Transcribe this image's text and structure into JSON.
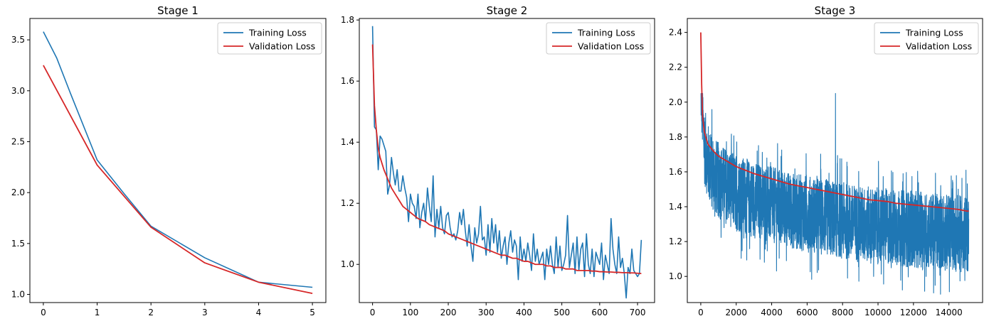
{
  "chart_data": [
    {
      "type": "line",
      "title": "Stage 1",
      "xlabel": "",
      "ylabel": "",
      "xlim": [
        -0.25,
        5.25
      ],
      "ylim": [
        0.92,
        3.71
      ],
      "x_ticks": [
        "0",
        "1",
        "2",
        "3",
        "4",
        "5"
      ],
      "y_ticks": [
        "1.0",
        "1.5",
        "2.0",
        "2.5",
        "3.0",
        "3.5"
      ],
      "legend": {
        "placement": "top-right",
        "entries": [
          "Training Loss",
          "Validation Loss"
        ]
      },
      "series": [
        {
          "name": "Training Loss",
          "color": "#1f77b4",
          "x": [
            0,
            0.25,
            0.5,
            0.75,
            1,
            1.5,
            2,
            3,
            4,
            5
          ],
          "y": [
            3.58,
            3.32,
            2.98,
            2.65,
            2.32,
            1.99,
            1.67,
            1.36,
            1.12,
            1.07
          ]
        },
        {
          "name": "Validation Loss",
          "color": "#d62728",
          "x": [
            0,
            1,
            2,
            3,
            4,
            5
          ],
          "y": [
            3.25,
            2.27,
            1.66,
            1.31,
            1.12,
            1.01
          ]
        }
      ]
    },
    {
      "type": "line",
      "title": "Stage 2",
      "xlabel": "",
      "ylabel": "",
      "xlim": [
        -35,
        745
      ],
      "ylim": [
        0.875,
        1.805
      ],
      "x_ticks": [
        "0",
        "100",
        "200",
        "300",
        "400",
        "500",
        "600",
        "700"
      ],
      "y_ticks": [
        "1.0",
        "1.2",
        "1.4",
        "1.6",
        "1.8"
      ],
      "legend": {
        "placement": "top-right",
        "entries": [
          "Training Loss",
          "Validation Loss"
        ]
      },
      "series": [
        {
          "name": "Training Loss",
          "color": "#1f77b4",
          "x": [
            0,
            5,
            10,
            15,
            20,
            25,
            30,
            35,
            40,
            45,
            50,
            55,
            60,
            65,
            70,
            75,
            80,
            85,
            90,
            95,
            100,
            105,
            110,
            115,
            120,
            125,
            130,
            135,
            140,
            145,
            150,
            155,
            160,
            165,
            170,
            175,
            180,
            185,
            190,
            195,
            200,
            205,
            210,
            215,
            220,
            225,
            230,
            235,
            240,
            245,
            250,
            255,
            260,
            265,
            270,
            275,
            280,
            285,
            290,
            295,
            300,
            305,
            310,
            315,
            320,
            325,
            330,
            335,
            340,
            345,
            350,
            355,
            360,
            365,
            370,
            375,
            380,
            385,
            390,
            395,
            400,
            405,
            410,
            415,
            420,
            425,
            430,
            435,
            440,
            445,
            450,
            455,
            460,
            465,
            470,
            475,
            480,
            485,
            490,
            495,
            500,
            505,
            510,
            515,
            520,
            525,
            530,
            535,
            540,
            545,
            550,
            555,
            560,
            565,
            570,
            575,
            580,
            585,
            590,
            595,
            600,
            605,
            610,
            615,
            620,
            625,
            630,
            635,
            640,
            645,
            650,
            655,
            660,
            665,
            670,
            675,
            680,
            685,
            690,
            695,
            700,
            705,
            710
          ],
          "y": [
            1.78,
            1.45,
            1.44,
            1.31,
            1.42,
            1.41,
            1.39,
            1.37,
            1.23,
            1.26,
            1.35,
            1.3,
            1.26,
            1.31,
            1.24,
            1.24,
            1.29,
            1.25,
            1.22,
            1.14,
            1.23,
            1.2,
            1.19,
            1.15,
            1.23,
            1.12,
            1.17,
            1.2,
            1.14,
            1.25,
            1.19,
            1.14,
            1.29,
            1.09,
            1.18,
            1.12,
            1.19,
            1.12,
            1.1,
            1.16,
            1.17,
            1.12,
            1.09,
            1.1,
            1.08,
            1.11,
            1.17,
            1.13,
            1.18,
            1.11,
            1.06,
            1.13,
            1.06,
            1.01,
            1.12,
            1.07,
            1.1,
            1.19,
            1.08,
            1.09,
            1.03,
            1.13,
            1.04,
            1.15,
            1.07,
            1.13,
            1.04,
            1.11,
            1.02,
            1.06,
            1.09,
            1.0,
            1.07,
            1.11,
            1.04,
            1.08,
            1.06,
            0.95,
            1.09,
            1.01,
            1.05,
            1.01,
            1.07,
            1.03,
            0.98,
            1.1,
            1.01,
            1.05,
            1.0,
            1.02,
            1.04,
            0.95,
            1.05,
            1.0,
            1.06,
            1.0,
            0.97,
            1.09,
            0.99,
            1.06,
            0.98,
            1.0,
            1.03,
            1.16,
            0.99,
            1.03,
            1.07,
            0.97,
            1.09,
            0.98,
            1.05,
            1.07,
            0.96,
            1.1,
            1.0,
            0.97,
            1.05,
            0.96,
            1.04,
            1.02,
            1.0,
            1.07,
            0.95,
            1.03,
            1.0,
            0.97,
            1.15,
            1.05,
            1.0,
            0.97,
            1.09,
            0.99,
            1.02,
            0.97,
            0.89,
            0.99,
            0.97,
            1.05,
            0.98,
            0.97,
            0.96,
            0.97,
            1.08
          ]
        },
        {
          "name": "Validation Loss",
          "color": "#d62728",
          "x": [
            0,
            5,
            10,
            15,
            20,
            25,
            30,
            40,
            50,
            60,
            70,
            80,
            90,
            100,
            110,
            120,
            130,
            140,
            150,
            160,
            170,
            180,
            190,
            200,
            210,
            220,
            230,
            240,
            250,
            260,
            270,
            280,
            290,
            300,
            310,
            320,
            330,
            340,
            350,
            360,
            370,
            380,
            390,
            400,
            410,
            420,
            430,
            440,
            450,
            460,
            470,
            480,
            490,
            500,
            510,
            520,
            530,
            540,
            550,
            560,
            570,
            580,
            590,
            600,
            610,
            620,
            630,
            640,
            650,
            660,
            670,
            680,
            690,
            700,
            710
          ],
          "y": [
            1.72,
            1.52,
            1.44,
            1.38,
            1.35,
            1.33,
            1.31,
            1.28,
            1.25,
            1.23,
            1.21,
            1.19,
            1.18,
            1.17,
            1.16,
            1.15,
            1.145,
            1.14,
            1.13,
            1.125,
            1.12,
            1.115,
            1.11,
            1.1,
            1.095,
            1.09,
            1.085,
            1.08,
            1.075,
            1.07,
            1.065,
            1.06,
            1.055,
            1.05,
            1.045,
            1.04,
            1.035,
            1.03,
            1.03,
            1.025,
            1.02,
            1.02,
            1.015,
            1.01,
            1.01,
            1.005,
            1.0,
            1.0,
            1.0,
            0.995,
            0.995,
            0.99,
            0.99,
            0.99,
            0.985,
            0.985,
            0.985,
            0.98,
            0.98,
            0.98,
            0.98,
            0.978,
            0.978,
            0.976,
            0.976,
            0.975,
            0.975,
            0.974,
            0.974,
            0.973,
            0.973,
            0.972,
            0.972,
            0.971,
            0.97
          ]
        }
      ]
    },
    {
      "type": "line",
      "title": "Stage 3",
      "xlabel": "",
      "ylabel": "",
      "xlim": [
        -760,
        15900
      ],
      "ylim": [
        0.85,
        2.48
      ],
      "x_ticks": [
        "0",
        "2000",
        "4000",
        "6000",
        "8000",
        "10000",
        "12000",
        "14000"
      ],
      "y_ticks": [
        "1.0",
        "1.2",
        "1.4",
        "1.6",
        "1.8",
        "2.0",
        "2.2",
        "2.4"
      ],
      "legend": {
        "placement": "top-right",
        "entries": [
          "Training Loss",
          "Validation Loss"
        ]
      },
      "series": [
        {
          "name": "Training Loss",
          "color": "#1f77b4",
          "x_start": 0,
          "x_end": 15120,
          "points": 15120,
          "trend": [
            [
              0,
              2.1
            ],
            [
              200,
              1.75
            ],
            [
              500,
              1.62
            ],
            [
              1000,
              1.55
            ],
            [
              2000,
              1.48
            ],
            [
              3000,
              1.44
            ],
            [
              4000,
              1.41
            ],
            [
              5000,
              1.38
            ],
            [
              6000,
              1.36
            ],
            [
              7000,
              1.34
            ],
            [
              8000,
              1.32
            ],
            [
              9000,
              1.3
            ],
            [
              10000,
              1.29
            ],
            [
              11000,
              1.28
            ],
            [
              12000,
              1.27
            ],
            [
              13000,
              1.26
            ],
            [
              14000,
              1.25
            ],
            [
              15120,
              1.24
            ]
          ],
          "spread": 0.22,
          "min": 0.89,
          "max": 2.05,
          "peak_x": 7600
        },
        {
          "name": "Validation Loss",
          "color": "#d62728",
          "x": [
            0,
            50,
            100,
            200,
            400,
            700,
            1000,
            1500,
            2000,
            2500,
            3000,
            3500,
            4000,
            4500,
            5000,
            5500,
            6000,
            6500,
            7000,
            7500,
            8000,
            8500,
            9000,
            9500,
            10000,
            10500,
            11000,
            11500,
            12000,
            12500,
            13000,
            13500,
            14000,
            14500,
            15000,
            15120
          ],
          "y": [
            2.4,
            2.1,
            1.92,
            1.83,
            1.76,
            1.72,
            1.69,
            1.66,
            1.63,
            1.61,
            1.59,
            1.575,
            1.56,
            1.545,
            1.53,
            1.52,
            1.51,
            1.5,
            1.49,
            1.48,
            1.47,
            1.46,
            1.45,
            1.44,
            1.435,
            1.43,
            1.42,
            1.415,
            1.41,
            1.405,
            1.4,
            1.395,
            1.39,
            1.385,
            1.375,
            1.375
          ]
        }
      ]
    }
  ]
}
